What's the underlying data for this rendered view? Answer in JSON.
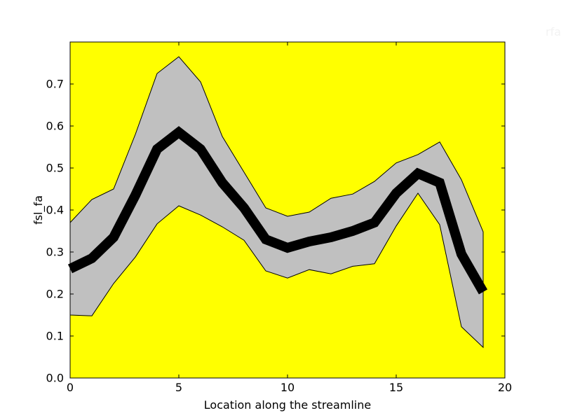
{
  "corner_label": "rfa",
  "chart_data": {
    "type": "area",
    "xlabel": "Location along the streamline",
    "ylabel": "fsl_fa",
    "xlim": [
      0,
      20
    ],
    "ylim": [
      0,
      0.8
    ],
    "xticks": [
      "0",
      "5",
      "10",
      "15",
      "20"
    ],
    "yticks": [
      "0.0",
      "0.1",
      "0.2",
      "0.3",
      "0.4",
      "0.5",
      "0.6",
      "0.7"
    ],
    "grid": false,
    "background_color": "#ffff00",
    "band_color": "#c0c0c0",
    "line_color": "#000000",
    "x": [
      0,
      1,
      2,
      3,
      4,
      5,
      6,
      7,
      8,
      9,
      10,
      11,
      12,
      13,
      14,
      15,
      16,
      17,
      18,
      19
    ],
    "series": [
      {
        "role": "mean",
        "values": [
          0.26,
          0.285,
          0.335,
          0.435,
          0.545,
          0.585,
          0.545,
          0.465,
          0.405,
          0.33,
          0.31,
          0.325,
          0.335,
          0.35,
          0.37,
          0.44,
          0.487,
          0.465,
          0.295,
          0.205
        ]
      },
      {
        "role": "upper",
        "values": [
          0.37,
          0.425,
          0.45,
          0.58,
          0.725,
          0.765,
          0.705,
          0.575,
          0.49,
          0.405,
          0.385,
          0.395,
          0.428,
          0.438,
          0.468,
          0.512,
          0.532,
          0.562,
          0.472,
          0.348
        ]
      },
      {
        "role": "lower",
        "values": [
          0.15,
          0.148,
          0.225,
          0.288,
          0.367,
          0.41,
          0.388,
          0.36,
          0.328,
          0.255,
          0.238,
          0.258,
          0.248,
          0.266,
          0.272,
          0.362,
          0.44,
          0.365,
          0.122,
          0.073
        ]
      }
    ]
  }
}
